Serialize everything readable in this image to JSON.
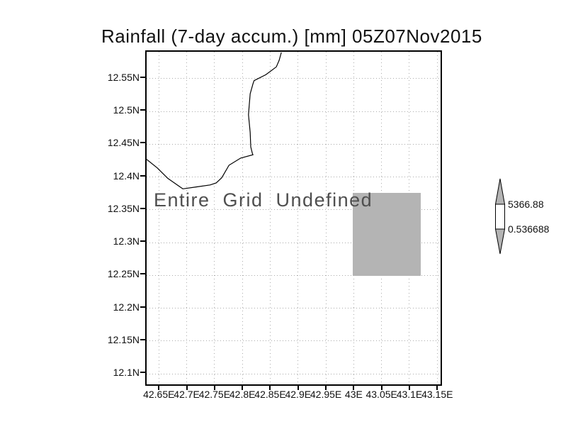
{
  "title": "Rainfall (7-day accum.) [mm] 05Z07Nov2015",
  "annotation": "Entire Grid Undefined",
  "colors": {
    "gray_fill": "#b4b4b4",
    "grid_dots": "#aaaaaa",
    "coastline": "#000000",
    "annotation_text": "#4f4f4f",
    "colorbar_mid": "#ffffff"
  },
  "colorbar": {
    "max_label": "5366.88",
    "min_label": "0.536688",
    "max_value": 5366.88,
    "min_value": 0.536688
  },
  "chart_data": {
    "type": "heatmap",
    "title": "Rainfall (7-day accum.) [mm] 05Z07Nov2015",
    "status": "Entire Grid Undefined",
    "grid": true,
    "legend_position": "right",
    "x_axis": {
      "range": [
        42.628,
        43.156
      ],
      "tick_values": [
        42.65,
        42.7,
        42.75,
        42.8,
        42.85,
        42.9,
        42.95,
        43.0,
        43.05,
        43.1,
        43.15
      ],
      "tick_labels": [
        "42.65E",
        "42.7E",
        "42.75E",
        "42.8E",
        "42.85E",
        "42.9E",
        "42.95E",
        "43E",
        "43.05E",
        "43.1E",
        "43.15E"
      ]
    },
    "y_axis": {
      "range": [
        12.084,
        12.591
      ],
      "tick_values": [
        12.55,
        12.5,
        12.45,
        12.4,
        12.35,
        12.3,
        12.25,
        12.2,
        12.15,
        12.1
      ],
      "tick_labels": [
        "12.55N",
        "12.5N",
        "12.45N",
        "12.4N",
        "12.35N",
        "12.3N",
        "12.25N",
        "12.2N",
        "12.15N",
        "12.1N"
      ]
    },
    "colorbar": {
      "max": 5366.88,
      "min": 0.536688
    },
    "undefined_region": {
      "lon": [
        42.998,
        43.12
      ],
      "lat": [
        12.249,
        12.376
      ]
    },
    "coastline_lonlat": [
      [
        42.87,
        12.59
      ],
      [
        42.866,
        12.578
      ],
      [
        42.861,
        12.568
      ],
      [
        42.842,
        12.556
      ],
      [
        42.821,
        12.547
      ],
      [
        42.819,
        12.542
      ],
      [
        42.814,
        12.527
      ],
      [
        42.812,
        12.506
      ],
      [
        42.811,
        12.495
      ],
      [
        42.814,
        12.468
      ],
      [
        42.815,
        12.446
      ],
      [
        42.818,
        12.436
      ],
      [
        42.819,
        12.434
      ],
      [
        42.797,
        12.429
      ],
      [
        42.776,
        12.418
      ],
      [
        42.763,
        12.399
      ],
      [
        42.753,
        12.391
      ],
      [
        42.742,
        12.388
      ],
      [
        42.717,
        12.385
      ],
      [
        42.693,
        12.382
      ],
      [
        42.666,
        12.398
      ],
      [
        42.647,
        12.414
      ],
      [
        42.628,
        12.427
      ]
    ]
  }
}
